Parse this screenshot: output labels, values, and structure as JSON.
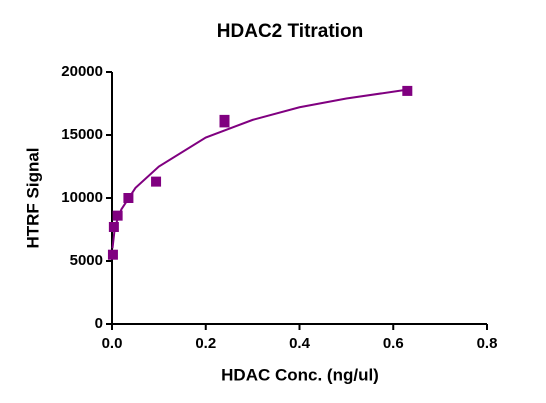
{
  "chart_data": {
    "type": "scatter",
    "title": "HDAC2 Titration",
    "x_label": "HDAC Conc. (ng/ul)",
    "y_label": "HTRF Signal",
    "xlim": [
      0,
      0.8
    ],
    "ylim": [
      0,
      20000
    ],
    "xticks": [
      {
        "value": 0,
        "label": "0.0"
      },
      0.2,
      0.4,
      0.6,
      0.8
    ],
    "yticks": [
      0,
      5000,
      10000,
      15000,
      20000
    ],
    "series": [
      {
        "type": "scatter",
        "color": "#800080",
        "x": [
          0.002,
          0.004,
          0.012,
          0.035,
          0.094,
          0.24,
          0.24,
          0.63
        ],
        "values": [
          5500,
          7700,
          8600,
          10000,
          11300,
          16000,
          16200,
          18500
        ]
      },
      {
        "type": "line",
        "color": "#800080",
        "x": [
          0.001,
          0.005,
          0.01,
          0.02,
          0.05,
          0.1,
          0.2,
          0.3,
          0.4,
          0.5,
          0.63
        ],
        "values": [
          6000,
          7300,
          8100,
          9100,
          10800,
          12500,
          14800,
          16200,
          17200,
          17900,
          18600
        ]
      }
    ]
  }
}
